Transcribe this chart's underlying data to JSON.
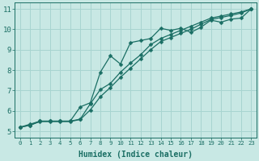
{
  "title": "",
  "xlabel": "Humidex (Indice chaleur)",
  "xlim": [
    -0.5,
    23.5
  ],
  "ylim": [
    4.7,
    11.3
  ],
  "xticks": [
    0,
    1,
    2,
    3,
    4,
    5,
    6,
    7,
    8,
    9,
    10,
    11,
    12,
    13,
    14,
    15,
    16,
    17,
    18,
    19,
    20,
    21,
    22,
    23
  ],
  "yticks": [
    5,
    6,
    7,
    8,
    9,
    10,
    11
  ],
  "bg_color": "#c8e8e4",
  "grid_color": "#a8d4d0",
  "line_color": "#1a6e64",
  "line1_y": [
    5.2,
    5.35,
    5.5,
    5.5,
    5.5,
    5.5,
    6.2,
    6.4,
    7.9,
    8.7,
    8.3,
    9.35,
    9.45,
    9.55,
    10.05,
    9.95,
    10.05,
    9.85,
    10.1,
    10.45,
    10.35,
    10.5,
    10.55,
    11.0
  ],
  "line2_y": [
    5.2,
    5.3,
    5.5,
    5.5,
    5.5,
    5.5,
    5.6,
    6.35,
    7.05,
    7.35,
    7.9,
    8.35,
    8.75,
    9.25,
    9.55,
    9.75,
    9.95,
    10.15,
    10.35,
    10.55,
    10.65,
    10.75,
    10.85,
    11.0
  ],
  "line3_y": [
    5.2,
    5.3,
    5.48,
    5.48,
    5.48,
    5.48,
    5.58,
    6.05,
    6.7,
    7.15,
    7.65,
    8.1,
    8.55,
    9.0,
    9.4,
    9.6,
    9.8,
    10.0,
    10.25,
    10.48,
    10.58,
    10.68,
    10.8,
    11.0
  ],
  "marker": "D",
  "markersize": 2.5,
  "linewidth": 0.9,
  "tick_fontsize_x": 5.2,
  "tick_fontsize_y": 6.5,
  "xlabel_fontsize": 7.0
}
